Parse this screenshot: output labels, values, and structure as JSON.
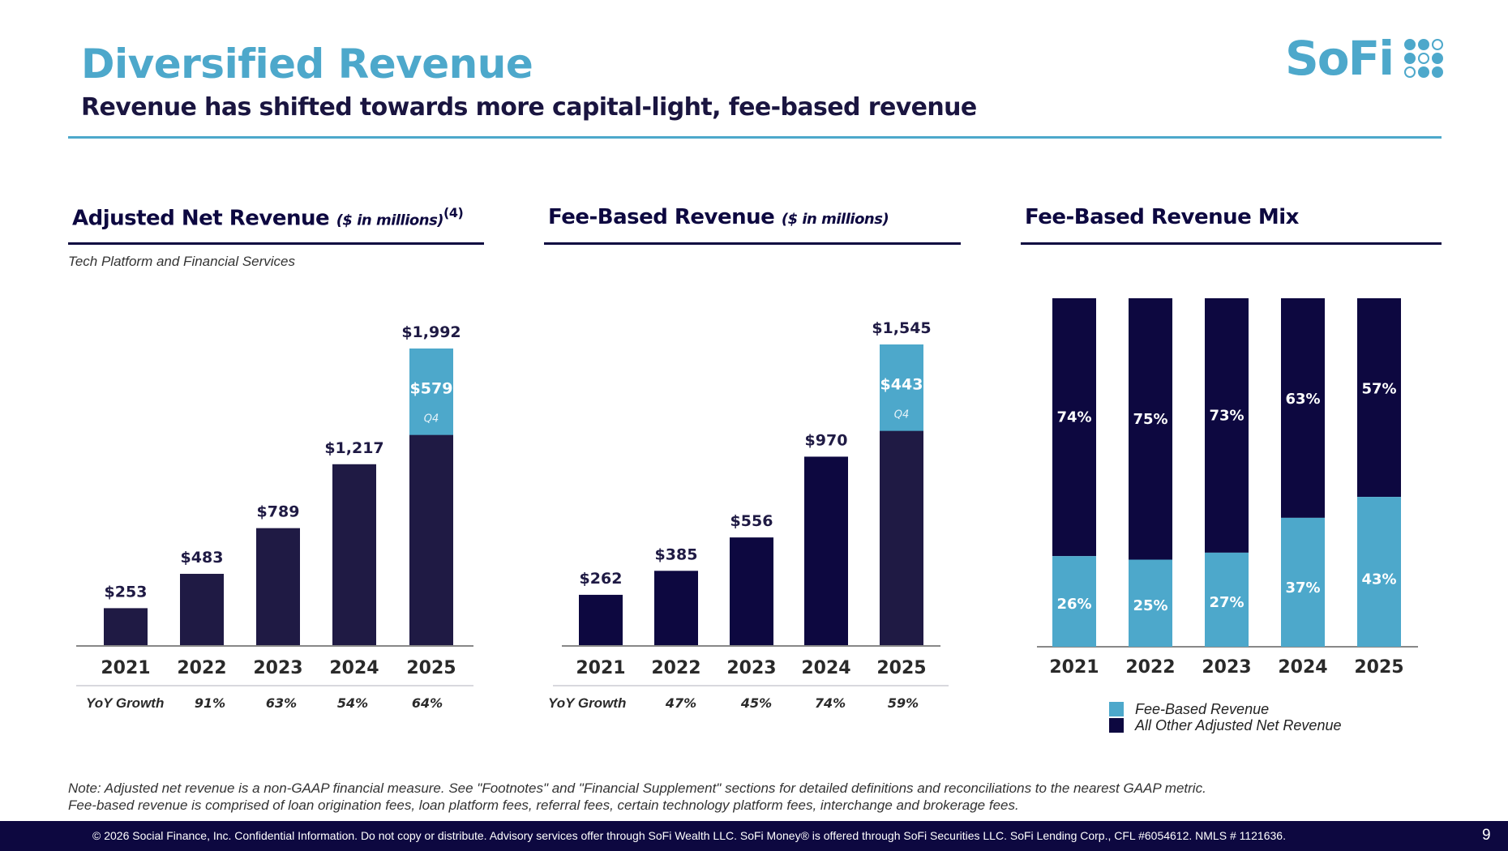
{
  "header": {
    "title": "Diversified Revenue",
    "subtitle": "Revenue has shifted towards more capital-light, fee-based revenue",
    "logo_text": "SoFi",
    "logo_icon": "sofi-dot-grid-icon"
  },
  "colors": {
    "accent": "#4da8cb",
    "navy": "#0d0840",
    "bar_dark": "#1f1a44",
    "axis": "#888888"
  },
  "panels": {
    "anr": {
      "title": "Adjusted Net Revenue",
      "unit": "($ in millions)",
      "footnote": "(4)",
      "subtitle": "Tech Platform and Financial Services",
      "yoy_label": "YoY Growth",
      "yoy": [
        "",
        "91%",
        "63%",
        "54%",
        "64%"
      ]
    },
    "fee": {
      "title": "Fee-Based Revenue",
      "unit": "($ in millions)",
      "yoy_label": "YoY Growth",
      "yoy": [
        "",
        "47%",
        "45%",
        "74%",
        "59%"
      ]
    },
    "mix": {
      "title": "Fee-Based Revenue Mix",
      "legend": [
        "Fee-Based Revenue",
        "All Other Adjusted Net Revenue"
      ]
    }
  },
  "chart_data": [
    {
      "type": "bar",
      "title": "Adjusted Net Revenue ($ in millions)",
      "categories": [
        "2021",
        "2022",
        "2023",
        "2024",
        "2025"
      ],
      "values": [
        253,
        483,
        789,
        1217,
        1992
      ],
      "labels": [
        "$253",
        "$483",
        "$789",
        "$1,217",
        "$1,992"
      ],
      "highlight": {
        "category": "2025",
        "value": 579,
        "label": "$579",
        "sublabel": "Q4"
      },
      "ylim": [
        0,
        2200
      ],
      "grid": false,
      "xlabel": "",
      "ylabel": ""
    },
    {
      "type": "bar",
      "title": "Fee-Based Revenue ($ in millions)",
      "categories": [
        "2021",
        "2022",
        "2023",
        "2024",
        "2025"
      ],
      "values": [
        262,
        385,
        556,
        970,
        1545
      ],
      "labels": [
        "$262",
        "$385",
        "$556",
        "$970",
        "$1,545"
      ],
      "highlight": {
        "category": "2025",
        "value": 443,
        "label": "$443",
        "sublabel": "Q4"
      },
      "ylim": [
        0,
        1700
      ],
      "grid": false,
      "xlabel": "",
      "ylabel": ""
    },
    {
      "type": "bar",
      "stacked": true,
      "percent": true,
      "title": "Fee-Based Revenue Mix",
      "categories": [
        "2021",
        "2022",
        "2023",
        "2024",
        "2025"
      ],
      "series": [
        {
          "name": "Fee-Based Revenue",
          "values": [
            26,
            25,
            27,
            37,
            43
          ],
          "color": "#4da8cb"
        },
        {
          "name": "All Other Adjusted Net Revenue",
          "values": [
            74,
            75,
            73,
            63,
            57
          ],
          "color": "#0d0840"
        }
      ],
      "ylim": [
        0,
        100
      ],
      "legend": "bottom"
    }
  ],
  "footnotes": {
    "line1": "Note: Adjusted net revenue is a non-GAAP financial measure. See \"Footnotes\" and \"Financial Supplement\" sections for detailed definitions and reconciliations to the nearest GAAP metric.",
    "line2": "Fee-based revenue is comprised of loan origination fees, loan platform fees, referral fees, certain technology platform fees, interchange and brokerage fees."
  },
  "footer": {
    "text": "© 2026 Social Finance, Inc. Confidential Information. Do not copy or distribute. Advisory services offer through SoFi Wealth LLC. SoFi Money® is offered through SoFi Securities LLC. SoFi Lending Corp., CFL #6054612. NMLS # 1121636.",
    "page_number": "9"
  }
}
